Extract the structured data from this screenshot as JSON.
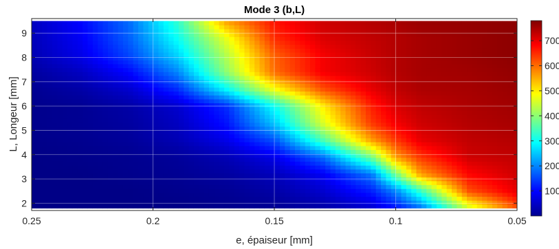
{
  "chart_data": {
    "type": "heatmap",
    "title": "Mode 3 (b,L)",
    "xlabel": "e, épaiseur [mm]",
    "ylabel": "L, Longeur [mm]",
    "x_reversed": true,
    "xlim": [
      0.05,
      0.25
    ],
    "ylim": [
      1.7,
      9.6
    ],
    "x_data_range": [
      0.05,
      0.25
    ],
    "y_data_range": [
      1.8,
      9.5
    ],
    "xticks": [
      0.25,
      0.2,
      0.15,
      0.1,
      0.05
    ],
    "xtick_labels": [
      "0.25",
      "0.2",
      "0.15",
      "0.1",
      "0.05"
    ],
    "yticks": [
      2,
      3,
      4,
      5,
      6,
      7,
      8,
      9
    ],
    "ytick_labels": [
      "2",
      "3",
      "4",
      "5",
      "6",
      "7",
      "8",
      "9"
    ],
    "colormap": "jet",
    "grid": true,
    "colorbar": {
      "range": [
        0,
        780
      ],
      "ticks": [
        100,
        200,
        300,
        400,
        500,
        600,
        700
      ],
      "tick_labels": [
        "100",
        "200",
        "300",
        "400",
        "500",
        "600",
        "700"
      ]
    },
    "x_values": [
      0.05,
      0.07,
      0.09,
      0.1,
      0.11,
      0.13,
      0.15,
      0.17,
      0.19,
      0.21,
      0.23,
      0.25
    ],
    "y_values": [
      1.8,
      2.5,
      3.2,
      3.9,
      4.6,
      5.3,
      6.0,
      6.7,
      7.4,
      8.1,
      8.8,
      9.5
    ],
    "z_values": [
      [
        620,
        450,
        180,
        110,
        60,
        30,
        15,
        10,
        5,
        5,
        5,
        5
      ],
      [
        700,
        620,
        330,
        200,
        120,
        60,
        30,
        15,
        10,
        5,
        5,
        5
      ],
      [
        720,
        680,
        560,
        380,
        190,
        90,
        45,
        25,
        15,
        10,
        5,
        5
      ],
      [
        730,
        720,
        640,
        560,
        380,
        180,
        80,
        40,
        20,
        12,
        8,
        5
      ],
      [
        740,
        730,
        700,
        640,
        560,
        350,
        160,
        80,
        40,
        20,
        12,
        8
      ],
      [
        750,
        740,
        720,
        690,
        640,
        460,
        250,
        110,
        50,
        25,
        15,
        10
      ],
      [
        755,
        745,
        730,
        710,
        660,
        500,
        300,
        130,
        60,
        30,
        15,
        10
      ],
      [
        760,
        750,
        745,
        730,
        700,
        620,
        480,
        290,
        130,
        60,
        30,
        15
      ],
      [
        765,
        755,
        750,
        740,
        720,
        690,
        600,
        400,
        200,
        100,
        50,
        25
      ],
      [
        770,
        760,
        750,
        740,
        725,
        690,
        610,
        430,
        260,
        150,
        80,
        40
      ],
      [
        770,
        760,
        750,
        740,
        730,
        710,
        650,
        470,
        300,
        170,
        90,
        45
      ],
      [
        770,
        765,
        760,
        750,
        740,
        720,
        670,
        560,
        330,
        180,
        100,
        50
      ]
    ]
  }
}
